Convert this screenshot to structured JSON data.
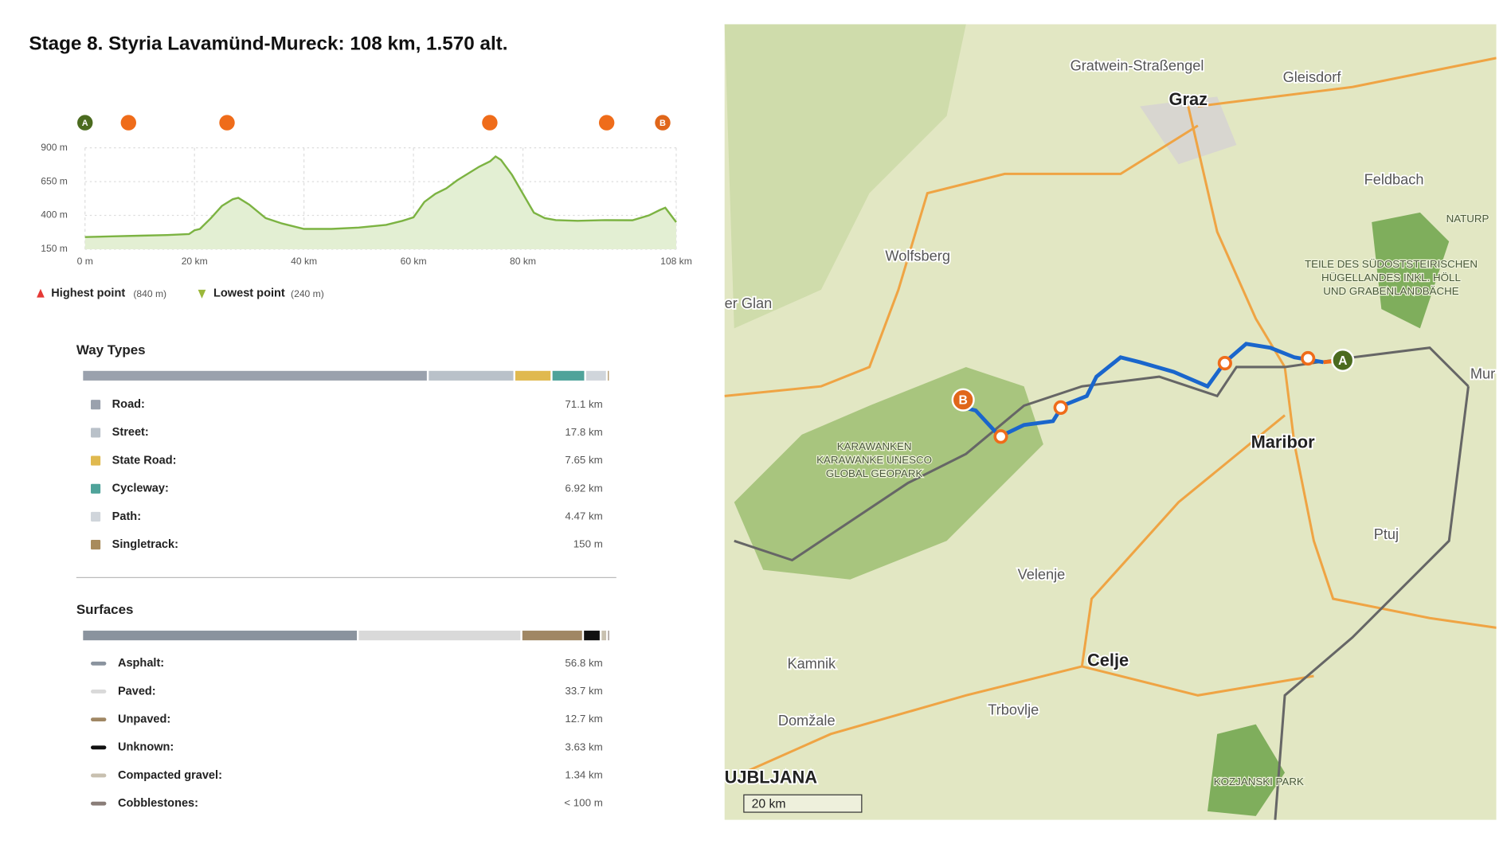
{
  "title": "Stage 8. Styria Lavamünd-Mureck: 108 km, 1.570 alt.",
  "elevation": {
    "type": "line",
    "color": "#7cb342",
    "fill": "#e3efd3",
    "markers": [
      "A",
      "B"
    ],
    "x": [
      0,
      5,
      10,
      15,
      19,
      20,
      21,
      23,
      25,
      27,
      28,
      30,
      33,
      36,
      40,
      45,
      50,
      55,
      58,
      60,
      62,
      64,
      66,
      68,
      70,
      72,
      74,
      75,
      76,
      78,
      80,
      82,
      84,
      86,
      90,
      95,
      100,
      103,
      105,
      106,
      108
    ],
    "values": [
      240,
      245,
      250,
      255,
      262,
      290,
      300,
      380,
      470,
      520,
      530,
      480,
      380,
      340,
      300,
      300,
      310,
      330,
      360,
      386,
      500,
      560,
      600,
      660,
      710,
      760,
      800,
      836,
      810,
      700,
      560,
      420,
      380,
      365,
      360,
      365,
      364,
      400,
      440,
      457,
      350
    ],
    "xlim": [
      0,
      108
    ],
    "ylim": [
      150,
      900
    ],
    "xticks": [
      {
        "value": 0,
        "label": "0 m"
      },
      {
        "value": 20,
        "label": "20 km"
      },
      {
        "value": 40,
        "label": "40 km"
      },
      {
        "value": 60,
        "label": "60 km"
      },
      {
        "value": 80,
        "label": "80 km"
      },
      {
        "value": 108,
        "label": "108 km"
      }
    ],
    "yticks": [
      {
        "value": 900,
        "label": "900 m"
      },
      {
        "value": 650,
        "label": "650 m"
      },
      {
        "value": 400,
        "label": "400 m"
      },
      {
        "value": 150,
        "label": "150 m"
      }
    ],
    "highest": {
      "label": "Highest point",
      "value_label": "(840 m)"
    },
    "lowest": {
      "label": "Lowest point",
      "value_label": "(240 m)"
    }
  },
  "way_types": {
    "title": "Way Types",
    "items": [
      {
        "name": "Road:",
        "value": 71.1,
        "value_label": "71.1 km",
        "color": "#9aa1ad"
      },
      {
        "name": "Street:",
        "value": 17.8,
        "value_label": "17.8 km",
        "color": "#b9c1c9"
      },
      {
        "name": "State Road:",
        "value": 7.65,
        "value_label": "7.65 km",
        "color": "#e0b94f"
      },
      {
        "name": "Cycleway:",
        "value": 6.92,
        "value_label": "6.92 km",
        "color": "#4fa39a"
      },
      {
        "name": "Path:",
        "value": 4.47,
        "value_label": "4.47 km",
        "color": "#d0d5db"
      },
      {
        "name": "Singletrack:",
        "value": 0.15,
        "value_label": "150 m",
        "color": "#a88b5c"
      }
    ]
  },
  "surfaces": {
    "title": "Surfaces",
    "items": [
      {
        "name": "Asphalt:",
        "value": 56.8,
        "value_label": "56.8 km",
        "color": "#8a939e"
      },
      {
        "name": "Paved:",
        "value": 33.7,
        "value_label": "33.7 km",
        "color": "#d9d9d9"
      },
      {
        "name": "Unpaved:",
        "value": 12.7,
        "value_label": "12.7 km",
        "color": "#a08764"
      },
      {
        "name": "Unknown:",
        "value": 3.63,
        "value_label": "3.63 km",
        "color": "#111111"
      },
      {
        "name": "Compacted gravel:",
        "value": 1.34,
        "value_label": "1.34 km",
        "color": "#c8c0b0"
      },
      {
        "name": "Cobblestones:",
        "value": 0.1,
        "value_label": "< 100 m",
        "color": "#8a7d78"
      }
    ]
  },
  "map": {
    "labels": [
      "Gratwein-Straßengel",
      "Graz",
      "Gleisdorf",
      "Feldbach",
      "Wolfsberg",
      "NATURP",
      "TEILE DES SÜDOSTSTEIRISCHEN",
      "HÜGELLANDES INKL. HÖLL",
      "UND GRABENLANDBÄCHE",
      "er Glan",
      "Mur",
      "KARAWANKEN",
      "KARAWANKE UNESCO",
      "GLOBAL GEOPARK",
      "Maribor",
      "Ptuj",
      "Velenje",
      "Celje",
      "Kamnik",
      "Domžale",
      "Trbovlje",
      "UJBLJANA",
      "KOZJANSKI PARK"
    ],
    "scale": "20 km"
  }
}
